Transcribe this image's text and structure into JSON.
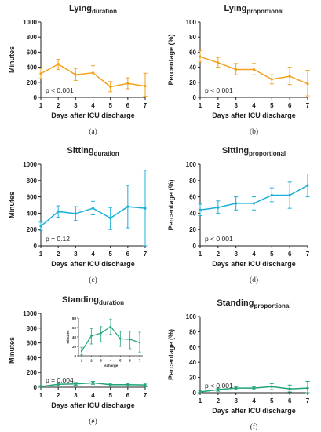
{
  "chart_data": [
    {
      "type": "line",
      "title_main": "Lying",
      "title_sub": "duration",
      "ylabel": "Minutes",
      "xlabel": "Days after ICU discharge",
      "caption": "(a)",
      "annotation": "p < 0.001",
      "color": "#f2a21b",
      "x": [
        1,
        2,
        3,
        4,
        5,
        6,
        7
      ],
      "y": [
        315,
        440,
        300,
        325,
        140,
        185,
        150
      ],
      "y_lo": [
        250,
        370,
        225,
        245,
        75,
        115,
        15
      ],
      "y_hi": [
        385,
        505,
        385,
        420,
        210,
        260,
        320
      ],
      "ylim": [
        0,
        1000
      ],
      "yticks": [
        "0",
        "200",
        "400",
        "600",
        "800",
        "1000"
      ],
      "xticks": [
        "1",
        "2",
        "3",
        "4",
        "5",
        "6",
        "7"
      ]
    },
    {
      "type": "line",
      "title_main": "Lying",
      "title_sub": "proportional",
      "ylabel": "Percentage (%)",
      "xlabel": "Days after ICU discharge",
      "caption": "(b)",
      "annotation": "p < 0.001",
      "color": "#f2a21b",
      "x": [
        1,
        2,
        3,
        4,
        5,
        6,
        7
      ],
      "y": [
        54,
        46,
        37,
        37,
        24,
        28,
        18
      ],
      "y_lo": [
        47,
        40,
        30,
        30,
        18,
        17,
        2
      ],
      "y_hi": [
        62,
        53,
        45,
        45,
        30,
        40,
        36
      ],
      "ylim": [
        0,
        100
      ],
      "yticks": [
        "0",
        "20",
        "40",
        "60",
        "80",
        "100"
      ],
      "xticks": [
        "1",
        "2",
        "3",
        "4",
        "5",
        "6",
        "7"
      ]
    },
    {
      "type": "line",
      "title_main": "Sitting",
      "title_sub": "duration",
      "ylabel": "Minutes",
      "xlabel": "Days after ICU discharge",
      "caption": "(c)",
      "annotation": "p = 0.12",
      "color": "#1ab0d8",
      "x": [
        1,
        2,
        3,
        4,
        5,
        6,
        7
      ],
      "y": [
        240,
        420,
        395,
        460,
        340,
        480,
        460
      ],
      "y_lo": [
        190,
        350,
        310,
        380,
        200,
        220,
        0
      ],
      "y_hi": [
        290,
        490,
        480,
        545,
        470,
        740,
        925
      ],
      "ylim": [
        0,
        1000
      ],
      "yticks": [
        "0",
        "200",
        "400",
        "600",
        "800",
        "1000"
      ],
      "xticks": [
        "1",
        "2",
        "3",
        "4",
        "5",
        "6",
        "7"
      ]
    },
    {
      "type": "line",
      "title_main": "Sitting",
      "title_sub": "proportional",
      "ylabel": "Percentage (%)",
      "xlabel": "Days after ICU discharge",
      "caption": "(d)",
      "annotation": "p < 0.001",
      "color": "#1ab0d8",
      "x": [
        1,
        2,
        3,
        4,
        5,
        6,
        7
      ],
      "y": [
        44,
        47,
        52,
        52,
        62,
        62,
        74
      ],
      "y_lo": [
        37,
        40,
        44,
        44,
        54,
        46,
        60
      ],
      "y_hi": [
        51,
        55,
        60,
        60,
        71,
        78,
        88
      ],
      "ylim": [
        0,
        100
      ],
      "yticks": [
        "0",
        "20",
        "40",
        "60",
        "80",
        "100"
      ],
      "xticks": [
        "1",
        "2",
        "3",
        "4",
        "5",
        "6",
        "7"
      ]
    },
    {
      "type": "line",
      "title_main": "Standing",
      "title_sub": "duration",
      "ylabel": "Minutes",
      "xlabel": "Days after ICU discharge",
      "caption": "(e)",
      "annotation": "p = 0.004",
      "color": "#1fa37a",
      "x": [
        1,
        2,
        3,
        4,
        5,
        6,
        7
      ],
      "y": [
        10,
        40,
        45,
        60,
        35,
        35,
        30
      ],
      "y_lo": [
        0,
        20,
        25,
        40,
        15,
        15,
        5
      ],
      "y_hi": [
        20,
        60,
        65,
        80,
        55,
        55,
        55
      ],
      "ylim": [
        0,
        1000
      ],
      "yticks": [
        "0",
        "200",
        "400",
        "600",
        "800",
        "1000"
      ],
      "xticks": [
        "1",
        "2",
        "3",
        "4",
        "5",
        "6",
        "7"
      ],
      "inset": {
        "ylabel": "Minutes",
        "xlabel": "ischarge",
        "x": [
          1,
          2,
          3,
          4,
          5,
          6,
          7
        ],
        "y": [
          10,
          42,
          48,
          62,
          36,
          35,
          28
        ],
        "y_lo": [
          2,
          25,
          30,
          46,
          20,
          15,
          8
        ],
        "y_hi": [
          18,
          58,
          62,
          78,
          52,
          52,
          50
        ],
        "ylim": [
          0,
          80
        ],
        "yticks": [
          "0",
          "20",
          "40",
          "60",
          "80"
        ],
        "xticks": [
          "1",
          "2",
          "3",
          "4",
          "5",
          "6",
          "7"
        ]
      }
    },
    {
      "type": "line",
      "title_main": "Standing",
      "title_sub": "proportional",
      "ylabel": "Percentage (%)",
      "xlabel": "Days after ICU discharge",
      "caption": "(f)",
      "annotation": "p < 0.001",
      "color": "#1fa37a",
      "x": [
        1,
        2,
        3,
        4,
        5,
        6,
        7
      ],
      "y": [
        1,
        4,
        6,
        6,
        8,
        5,
        6
      ],
      "y_lo": [
        0,
        2,
        4,
        4,
        4,
        1,
        0
      ],
      "y_hi": [
        3,
        6,
        8,
        8,
        12,
        10,
        15
      ],
      "ylim": [
        0,
        100
      ],
      "yticks": [
        "0",
        "20",
        "40",
        "60",
        "80",
        "100"
      ],
      "xticks": [
        "1",
        "2",
        "3",
        "4",
        "5",
        "6",
        "7"
      ]
    }
  ]
}
